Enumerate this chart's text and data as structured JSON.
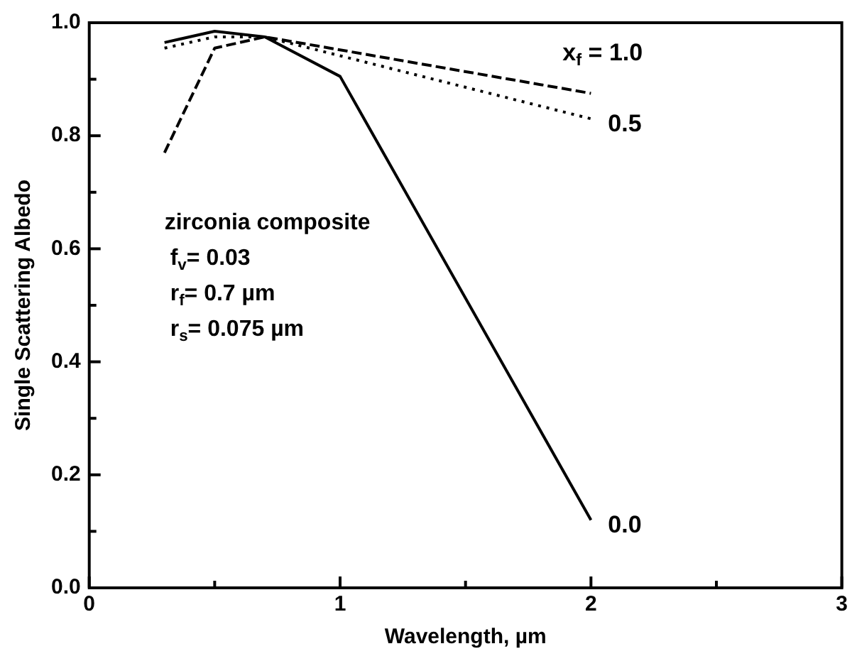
{
  "chart_data": {
    "type": "line",
    "xlabel": "Wavelength, µm",
    "ylabel": "Single Scattering Albedo",
    "xlim": [
      0,
      3
    ],
    "xticks": [
      0,
      {
        "value": 0.5,
        "label": null
      },
      1,
      {
        "value": 1.5,
        "label": null
      },
      2,
      {
        "value": 2.5,
        "label": null
      },
      3
    ],
    "ylim": [
      0,
      1
    ],
    "yticks": [
      {
        "value": 0,
        "label": "0.0"
      },
      {
        "value": 0.1,
        "label": null
      },
      {
        "value": 0.2,
        "label": "0.2"
      },
      {
        "value": 0.3,
        "label": null
      },
      {
        "value": 0.4,
        "label": "0.4"
      },
      {
        "value": 0.5,
        "label": null
      },
      {
        "value": 0.6,
        "label": "0.6"
      },
      {
        "value": 0.7,
        "label": null
      },
      {
        "value": 0.8,
        "label": "0.8"
      },
      {
        "value": 0.9,
        "label": null
      },
      {
        "value": 1,
        "label": "1.0"
      }
    ],
    "grid": false,
    "legend": false,
    "marker": "none",
    "series": [
      {
        "name": "x$_{f}$ = 1.0",
        "color": "#000000",
        "line_style": "dashed",
        "x": [
          0.3,
          0.5,
          0.7,
          2.0
        ],
        "values": [
          0.77,
          0.955,
          0.975,
          0.875
        ]
      },
      {
        "name": "0.5",
        "color": "#000000",
        "line_style": "dotted",
        "x": [
          0.3,
          0.5,
          0.7,
          2.0
        ],
        "values": [
          0.955,
          0.975,
          0.975,
          0.83
        ]
      },
      {
        "name": "0.0",
        "color": "#000000",
        "line_style": "solid",
        "x": [
          0.3,
          0.5,
          0.7,
          1.0,
          2.0
        ],
        "values": [
          0.965,
          0.985,
          0.975,
          0.905,
          0.12
        ]
      }
    ],
    "annotations": [
      "zirconia composite",
      "f$_{v}$= 0.03",
      "r$_{f}$= 0.7 µm",
      "r$_{s}$= 0.075 µm"
    ]
  }
}
